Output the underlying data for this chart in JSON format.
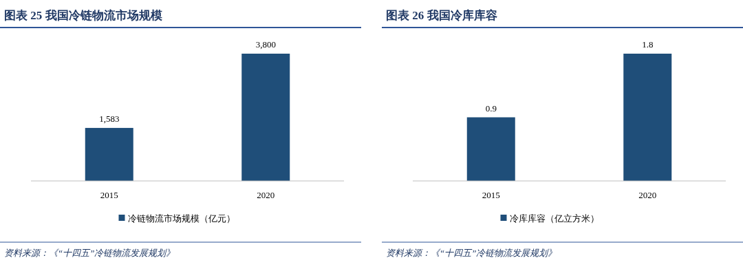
{
  "chart_data": [
    {
      "type": "bar",
      "title": "图表 25 我国冷链物流市场规模",
      "categories": [
        "2015",
        "2020"
      ],
      "series": [
        {
          "name": "冷链物流市场规模（亿元）",
          "color": "#1f4e79",
          "values": [
            1583,
            3800
          ],
          "value_labels": [
            "1,583",
            "3,800"
          ]
        }
      ],
      "legend": "bottom",
      "annotations": [
        "资料来源：《“十四五”冷链物流发展规划》"
      ]
    },
    {
      "type": "bar",
      "title": "图表 26 我国冷库库容",
      "categories": [
        "2015",
        "2020"
      ],
      "series": [
        {
          "name": "冷库库容（亿立方米）",
          "color": "#1f4e79",
          "values": [
            0.9,
            1.8
          ],
          "value_labels": [
            "0.9",
            "1.8"
          ]
        }
      ],
      "legend": "bottom",
      "annotations": [
        "资料来源：《“十四五”冷链物流发展规划》"
      ]
    }
  ]
}
